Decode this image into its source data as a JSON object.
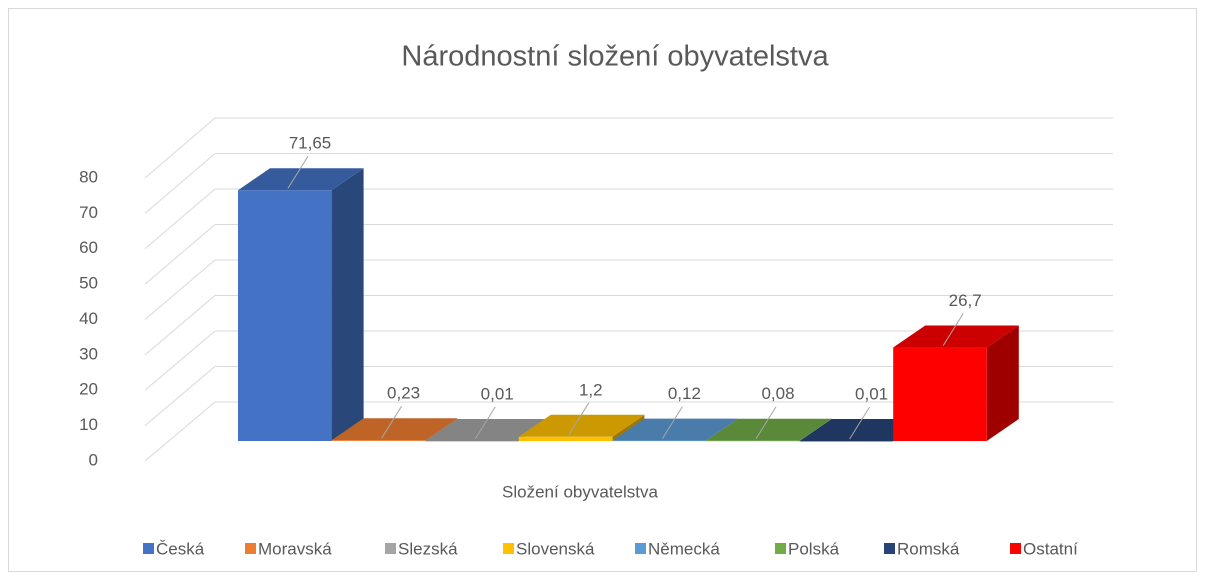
{
  "chart_data": {
    "type": "bar3d",
    "title": "Národnostní složení obyvatelstva",
    "categories": [
      "Složení obyvatelstva"
    ],
    "series": [
      {
        "name": "Česká",
        "color": "#4472c4",
        "values": [
          71.65
        ],
        "value_labels": [
          "71,65"
        ]
      },
      {
        "name": "Moravská",
        "color": "#ed7d31",
        "values": [
          0.23
        ],
        "value_labels": [
          "0,23"
        ]
      },
      {
        "name": "Slezská",
        "color": "#a5a5a5",
        "values": [
          0.01
        ],
        "value_labels": [
          "0,01"
        ]
      },
      {
        "name": "Slovenská",
        "color": "#ffc000",
        "values": [
          1.2
        ],
        "value_labels": [
          "1,2"
        ]
      },
      {
        "name": "Německá",
        "color": "#5b9bd5",
        "values": [
          0.12
        ],
        "value_labels": [
          "0,12"
        ]
      },
      {
        "name": "Polská",
        "color": "#70ad47",
        "values": [
          0.08
        ],
        "value_labels": [
          "0,08"
        ]
      },
      {
        "name": "Romská",
        "color": "#264478",
        "values": [
          0.01
        ],
        "value_labels": [
          "0,01"
        ]
      },
      {
        "name": "Ostatní",
        "color": "#ff0000",
        "values": [
          26.7
        ],
        "value_labels": [
          "26,7"
        ]
      }
    ],
    "ylim": [
      0,
      80
    ],
    "yticks": [
      0,
      10,
      20,
      30,
      40,
      50,
      60,
      70,
      80
    ],
    "grid": true,
    "legend": "bottom"
  }
}
